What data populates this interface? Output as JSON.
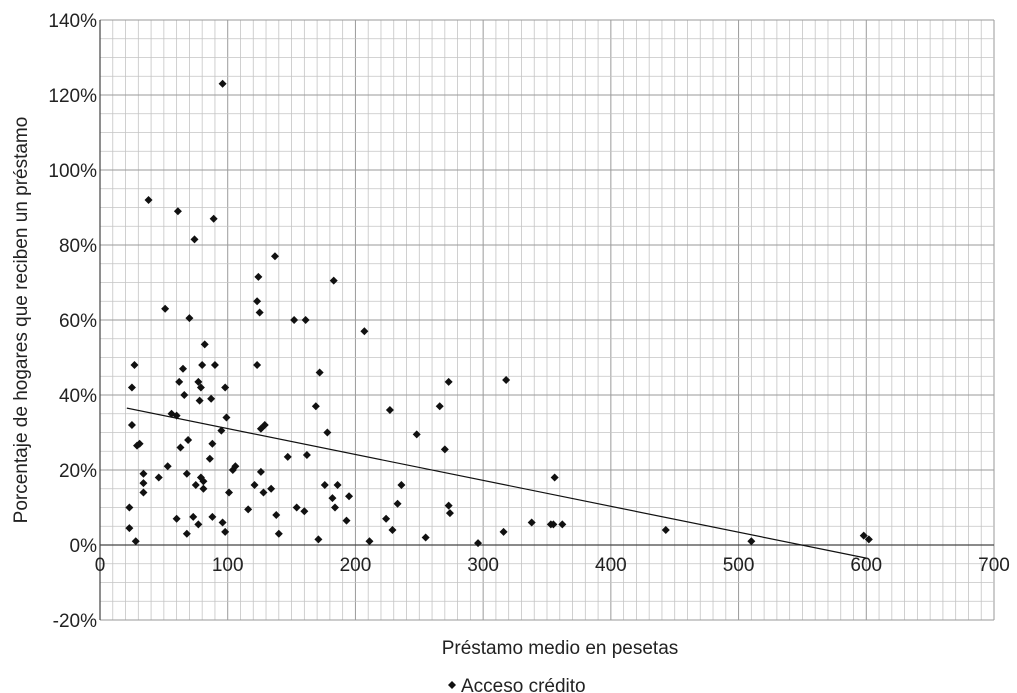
{
  "chart_data": {
    "type": "scatter",
    "title": "",
    "xlabel": "Préstamo medio en pesetas",
    "ylabel": "Porcentaje de hogares que reciben un préstamo",
    "xlim": [
      0,
      700
    ],
    "ylim": [
      -20,
      140
    ],
    "x_ticks": [
      0,
      100,
      200,
      300,
      400,
      500,
      600,
      700
    ],
    "x_tick_labels": [
      "0",
      "100",
      "200",
      "300",
      "400",
      "500",
      "600",
      "700"
    ],
    "y_ticks": [
      -20,
      0,
      20,
      40,
      60,
      80,
      100,
      120,
      140
    ],
    "y_tick_labels": [
      "-20%",
      "0%",
      "20%",
      "40%",
      "60%",
      "80%",
      "100%",
      "120%",
      "140%"
    ],
    "grid": true,
    "legend_position": "bottom",
    "marker_color": "#111111",
    "series": [
      {
        "name": "Acceso crédito",
        "marker": "diamond",
        "points": [
          [
            23,
            10
          ],
          [
            23,
            4.5
          ],
          [
            25,
            42
          ],
          [
            25,
            32
          ],
          [
            27,
            48
          ],
          [
            28,
            1
          ],
          [
            29,
            26.5
          ],
          [
            31,
            27
          ],
          [
            34,
            19
          ],
          [
            34,
            16.5
          ],
          [
            34,
            14
          ],
          [
            38,
            92
          ],
          [
            46,
            18
          ],
          [
            51,
            63
          ],
          [
            53,
            21
          ],
          [
            56,
            35
          ],
          [
            60,
            34.5
          ],
          [
            60,
            7
          ],
          [
            61,
            89
          ],
          [
            62,
            43.5
          ],
          [
            63,
            26
          ],
          [
            65,
            47
          ],
          [
            66,
            40
          ],
          [
            68,
            3
          ],
          [
            68,
            19
          ],
          [
            69,
            28
          ],
          [
            70,
            60.5
          ],
          [
            73,
            7.5
          ],
          [
            74,
            81.5
          ],
          [
            75,
            16
          ],
          [
            77,
            43.5
          ],
          [
            77,
            5.5
          ],
          [
            78,
            38.5
          ],
          [
            79,
            42
          ],
          [
            79,
            18
          ],
          [
            80,
            48
          ],
          [
            81,
            17
          ],
          [
            81,
            15
          ],
          [
            82,
            53.5
          ],
          [
            86,
            23
          ],
          [
            87,
            39
          ],
          [
            88,
            7.5
          ],
          [
            88,
            27
          ],
          [
            89,
            87
          ],
          [
            90,
            48
          ],
          [
            95,
            30.5
          ],
          [
            96,
            123
          ],
          [
            96,
            6
          ],
          [
            98,
            42
          ],
          [
            98,
            3.5
          ],
          [
            99,
            34
          ],
          [
            101,
            14
          ],
          [
            104,
            20
          ],
          [
            106,
            21
          ],
          [
            116,
            9.5
          ],
          [
            121,
            16
          ],
          [
            123,
            48
          ],
          [
            123,
            65
          ],
          [
            124,
            71.5
          ],
          [
            125,
            62
          ],
          [
            126,
            31
          ],
          [
            126,
            19.5
          ],
          [
            128,
            14
          ],
          [
            129,
            32
          ],
          [
            134,
            15
          ],
          [
            137,
            77
          ],
          [
            138,
            8
          ],
          [
            140,
            3
          ],
          [
            147,
            23.5
          ],
          [
            152,
            60
          ],
          [
            154,
            10
          ],
          [
            160,
            9
          ],
          [
            161,
            60
          ],
          [
            162,
            24
          ],
          [
            169,
            37
          ],
          [
            171,
            1.5
          ],
          [
            172,
            46
          ],
          [
            176,
            16
          ],
          [
            178,
            30
          ],
          [
            182,
            12.5
          ],
          [
            183,
            70.5
          ],
          [
            184,
            10
          ],
          [
            186,
            16
          ],
          [
            193,
            6.5
          ],
          [
            195,
            13
          ],
          [
            207,
            57
          ],
          [
            211,
            1
          ],
          [
            224,
            7
          ],
          [
            227,
            36
          ],
          [
            229,
            4
          ],
          [
            233,
            11
          ],
          [
            236,
            16
          ],
          [
            248,
            29.5
          ],
          [
            255,
            2
          ],
          [
            266,
            37
          ],
          [
            270,
            25.5
          ],
          [
            273,
            43.5
          ],
          [
            273,
            10.5
          ],
          [
            274,
            8.5
          ],
          [
            296,
            0.5
          ],
          [
            316,
            3.5
          ],
          [
            318,
            44
          ],
          [
            338,
            6
          ],
          [
            353,
            5.5
          ],
          [
            355,
            5.5
          ],
          [
            356,
            18
          ],
          [
            362,
            5.5
          ],
          [
            443,
            4
          ],
          [
            510,
            1
          ],
          [
            598,
            2.5
          ],
          [
            602,
            1.5
          ]
        ]
      }
    ],
    "trendline": {
      "type": "linear",
      "x": [
        21,
        600
      ],
      "y": [
        36.5,
        -3.5
      ]
    }
  }
}
